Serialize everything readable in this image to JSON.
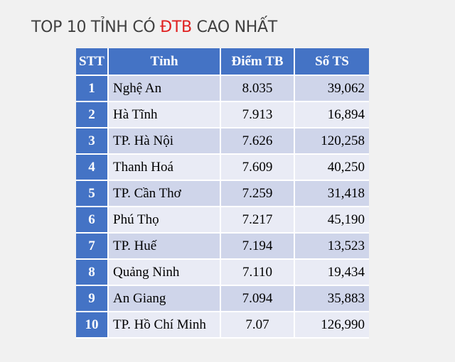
{
  "title": {
    "prefix": "TOP 10 TỈNH CÓ ",
    "highlight": "ĐTB",
    "suffix": " CAO NHẤT"
  },
  "colors": {
    "header_blue": "#4473c5",
    "row_odd": "#cfd5ea",
    "row_even": "#e9ebf5",
    "highlight_red": "#e02020"
  },
  "table": {
    "headers": [
      "STT",
      "Tỉnh",
      "Điểm TB",
      "Số TS"
    ],
    "rows": [
      {
        "stt": "1",
        "province": "Nghệ An",
        "score": "8.035",
        "count": "39,062"
      },
      {
        "stt": "2",
        "province": "Hà Tĩnh",
        "score": "7.913",
        "count": "16,894"
      },
      {
        "stt": "3",
        "province": "TP. Hà Nội",
        "score": "7.626",
        "count": "120,258"
      },
      {
        "stt": "4",
        "province": "Thanh Hoá",
        "score": "7.609",
        "count": "40,250"
      },
      {
        "stt": "5",
        "province": "TP. Cần Thơ",
        "score": "7.259",
        "count": "31,418"
      },
      {
        "stt": "6",
        "province": "Phú Thọ",
        "score": "7.217",
        "count": "45,190"
      },
      {
        "stt": "7",
        "province": "TP. Huế",
        "score": "7.194",
        "count": "13,523"
      },
      {
        "stt": "8",
        "province": "Quảng Ninh",
        "score": "7.110",
        "count": "19,434"
      },
      {
        "stt": "9",
        "province": "An Giang",
        "score": "7.094",
        "count": "35,883"
      },
      {
        "stt": "10",
        "province": "TP. Hồ Chí Minh",
        "score": "7.07",
        "count": "126,990"
      }
    ]
  }
}
